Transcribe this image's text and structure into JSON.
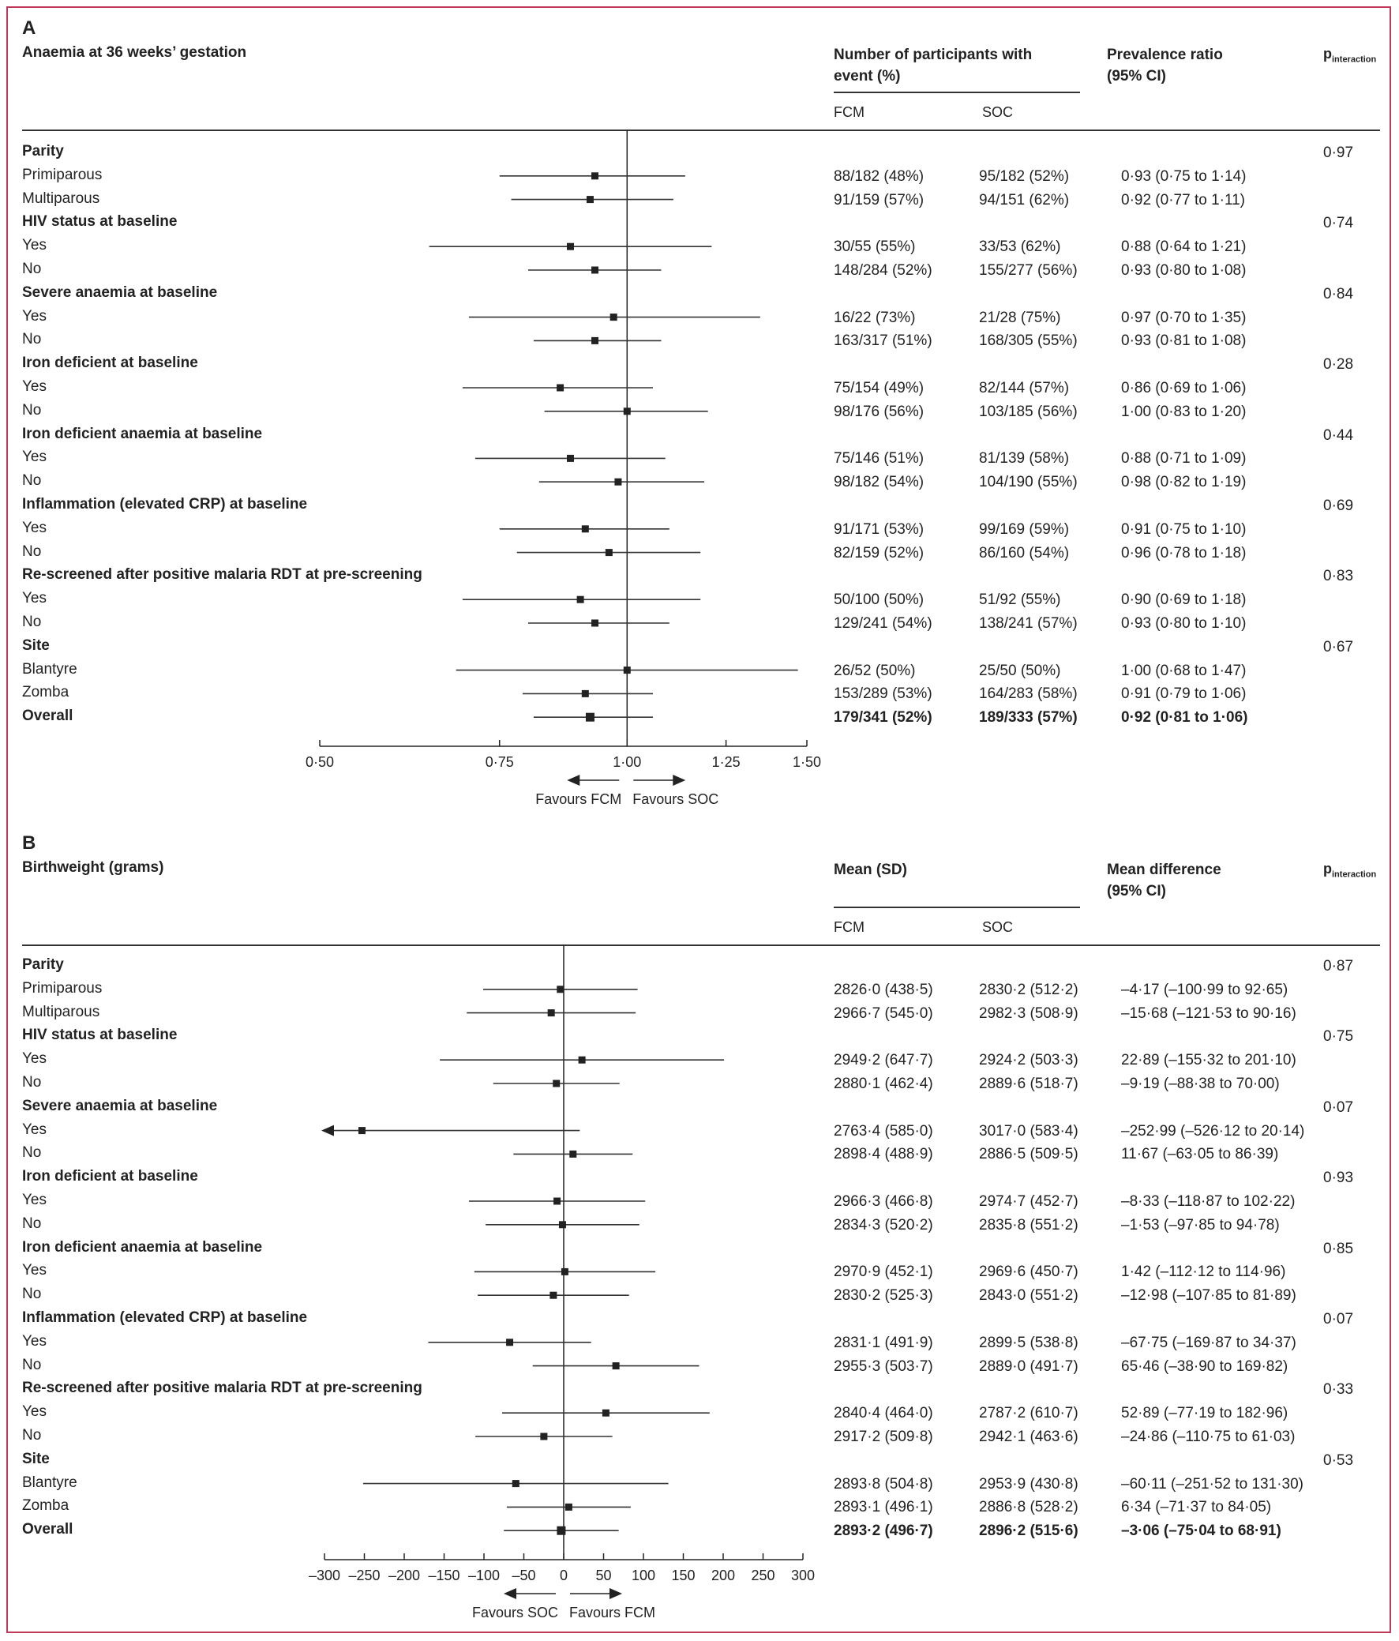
{
  "chart_data": [
    {
      "type": "forest",
      "label": "A",
      "title": "Anaemia at 36 weeks’ gestation",
      "columns": {
        "events": "Number of participants with event (%)",
        "ratio": "Prevalence ratio (95% CI)",
        "fcm": "FCM",
        "soc": "SOC",
        "pint_main": "p",
        "pint_sub": "interaction"
      },
      "axis": {
        "scale": "log",
        "xlim": [
          0.5,
          1.5
        ],
        "ref": 1.0,
        "ticks": [
          0.5,
          0.75,
          1.0,
          1.25,
          1.5
        ],
        "tick_labels": [
          "0·50",
          "0·75",
          "1·00",
          "1·25",
          "1·50"
        ],
        "favours_left": "Favours FCM",
        "favours_right": "Favours SOC"
      },
      "rows": [
        {
          "label": "Parity",
          "group": true,
          "p": "0·97"
        },
        {
          "label": "Primiparous",
          "est": 0.93,
          "lo": 0.75,
          "hi": 1.14,
          "fcm": "88/182 (48%)",
          "soc": "95/182 (52%)",
          "ci": "0·93 (0·75 to 1·14)"
        },
        {
          "label": "Multiparous",
          "est": 0.92,
          "lo": 0.77,
          "hi": 1.11,
          "fcm": "91/159 (57%)",
          "soc": "94/151 (62%)",
          "ci": "0·92 (0·77 to 1·11)"
        },
        {
          "label": "HIV status at baseline",
          "group": true,
          "p": "0·74"
        },
        {
          "label": "Yes",
          "est": 0.88,
          "lo": 0.64,
          "hi": 1.21,
          "fcm": "30/55 (55%)",
          "soc": "33/53 (62%)",
          "ci": "0·88 (0·64 to 1·21)"
        },
        {
          "label": "No",
          "est": 0.93,
          "lo": 0.8,
          "hi": 1.08,
          "fcm": "148/284 (52%)",
          "soc": "155/277 (56%)",
          "ci": "0·93 (0·80 to 1·08)"
        },
        {
          "label": "Severe anaemia at baseline",
          "group": true,
          "p": "0·84"
        },
        {
          "label": "Yes",
          "est": 0.97,
          "lo": 0.7,
          "hi": 1.35,
          "fcm": "16/22 (73%)",
          "soc": "21/28 (75%)",
          "ci": "0·97 (0·70 to 1·35)"
        },
        {
          "label": "No",
          "est": 0.93,
          "lo": 0.81,
          "hi": 1.08,
          "fcm": "163/317 (51%)",
          "soc": "168/305 (55%)",
          "ci": "0·93 (0·81 to 1·08)"
        },
        {
          "label": "Iron deficient at baseline",
          "group": true,
          "p": "0·28"
        },
        {
          "label": "Yes",
          "est": 0.86,
          "lo": 0.69,
          "hi": 1.06,
          "fcm": "75/154 (49%)",
          "soc": "82/144 (57%)",
          "ci": "0·86 (0·69 to 1·06)"
        },
        {
          "label": "No",
          "est": 1.0,
          "lo": 0.83,
          "hi": 1.2,
          "fcm": "98/176 (56%)",
          "soc": "103/185 (56%)",
          "ci": "1·00 (0·83 to 1·20)"
        },
        {
          "label": "Iron deficient anaemia at baseline",
          "group": true,
          "p": "0·44"
        },
        {
          "label": "Yes",
          "est": 0.88,
          "lo": 0.71,
          "hi": 1.09,
          "fcm": "75/146 (51%)",
          "soc": "81/139 (58%)",
          "ci": "0·88 (0·71 to 1·09)"
        },
        {
          "label": "No",
          "est": 0.98,
          "lo": 0.82,
          "hi": 1.19,
          "fcm": "98/182 (54%)",
          "soc": "104/190 (55%)",
          "ci": "0·98 (0·82 to 1·19)"
        },
        {
          "label": "Inflammation (elevated CRP) at baseline",
          "group": true,
          "p": "0·69"
        },
        {
          "label": "Yes",
          "est": 0.91,
          "lo": 0.75,
          "hi": 1.1,
          "fcm": "91/171 (53%)",
          "soc": "99/169 (59%)",
          "ci": "0·91 (0·75 to 1·10)"
        },
        {
          "label": "No",
          "est": 0.96,
          "lo": 0.78,
          "hi": 1.18,
          "fcm": "82/159 (52%)",
          "soc": "86/160 (54%)",
          "ci": "0·96 (0·78 to 1·18)"
        },
        {
          "label": "Re-screened after positive malaria RDT at pre-screening",
          "group": true,
          "p": "0·83"
        },
        {
          "label": "Yes",
          "est": 0.9,
          "lo": 0.69,
          "hi": 1.18,
          "fcm": "50/100 (50%)",
          "soc": "51/92 (55%)",
          "ci": "0·90 (0·69 to 1·18)"
        },
        {
          "label": "No",
          "est": 0.93,
          "lo": 0.8,
          "hi": 1.1,
          "fcm": "129/241 (54%)",
          "soc": "138/241 (57%)",
          "ci": "0·93 (0·80 to 1·10)"
        },
        {
          "label": "Site",
          "group": true,
          "p": "0·67"
        },
        {
          "label": "Blantyre",
          "est": 1.0,
          "lo": 0.68,
          "hi": 1.47,
          "fcm": "26/52 (50%)",
          "soc": "25/50 (50%)",
          "ci": "1·00 (0·68 to 1·47)"
        },
        {
          "label": "Zomba",
          "est": 0.91,
          "lo": 0.79,
          "hi": 1.06,
          "fcm": "153/289 (53%)",
          "soc": "164/283 (58%)",
          "ci": "0·91 (0·79 to 1·06)"
        },
        {
          "label": "Overall",
          "overall": true,
          "est": 0.92,
          "lo": 0.81,
          "hi": 1.06,
          "fcm": "179/341 (52%)",
          "soc": "189/333 (57%)",
          "ci": "0·92 (0·81 to 1·06)"
        }
      ]
    },
    {
      "type": "forest",
      "label": "B",
      "title": "Birthweight (grams)",
      "columns": {
        "events": "Mean (SD)",
        "ratio": "Mean difference (95% CI)",
        "fcm": "FCM",
        "soc": "SOC",
        "pint_main": "p",
        "pint_sub": "interaction"
      },
      "axis": {
        "scale": "linear",
        "xlim": [
          -300,
          300
        ],
        "ref": 0,
        "ticks": [
          -300,
          -250,
          -200,
          -150,
          -100,
          -50,
          0,
          50,
          100,
          150,
          200,
          250,
          300
        ],
        "tick_labels": [
          "–300",
          "–250",
          "–200",
          "–150",
          "–100",
          "–50",
          "0",
          "50",
          "100",
          "150",
          "200",
          "250",
          "300"
        ],
        "favours_left": "Favours SOC",
        "favours_right": "Favours FCM"
      },
      "rows": [
        {
          "label": "Parity",
          "group": true,
          "p": "0·87"
        },
        {
          "label": "Primiparous",
          "est": -4.17,
          "lo": -100.99,
          "hi": 92.65,
          "fcm": "2826·0 (438·5)",
          "soc": "2830·2 (512·2)",
          "ci": "–4·17 (–100·99 to 92·65)"
        },
        {
          "label": "Multiparous",
          "est": -15.68,
          "lo": -121.53,
          "hi": 90.16,
          "fcm": "2966·7 (545·0)",
          "soc": "2982·3 (508·9)",
          "ci": "–15·68 (–121·53 to 90·16)"
        },
        {
          "label": "HIV status at baseline",
          "group": true,
          "p": "0·75"
        },
        {
          "label": "Yes",
          "est": 22.89,
          "lo": -155.32,
          "hi": 201.1,
          "fcm": "2949·2 (647·7)",
          "soc": "2924·2 (503·3)",
          "ci": "22·89 (–155·32 to 201·10)"
        },
        {
          "label": "No",
          "est": -9.19,
          "lo": -88.38,
          "hi": 70.0,
          "fcm": "2880·1 (462·4)",
          "soc": "2889·6 (518·7)",
          "ci": "–9·19 (–88·38 to 70·00)"
        },
        {
          "label": "Severe anaemia at baseline",
          "group": true,
          "p": "0·07"
        },
        {
          "label": "Yes",
          "est": -252.99,
          "lo": -526.12,
          "hi": 20.14,
          "fcm": "2763·4 (585·0)",
          "soc": "3017·0 (583·4)",
          "ci": "–252·99 (–526·12 to 20·14)"
        },
        {
          "label": "No",
          "est": 11.67,
          "lo": -63.05,
          "hi": 86.39,
          "fcm": "2898·4 (488·9)",
          "soc": "2886·5 (509·5)",
          "ci": "11·67 (–63·05 to 86·39)"
        },
        {
          "label": "Iron deficient at baseline",
          "group": true,
          "p": "0·93"
        },
        {
          "label": "Yes",
          "est": -8.33,
          "lo": -118.87,
          "hi": 102.22,
          "fcm": "2966·3 (466·8)",
          "soc": "2974·7 (452·7)",
          "ci": "–8·33 (–118·87 to 102·22)"
        },
        {
          "label": "No",
          "est": -1.53,
          "lo": -97.85,
          "hi": 94.78,
          "fcm": "2834·3 (520·2)",
          "soc": "2835·8 (551·2)",
          "ci": "–1·53 (–97·85 to 94·78)"
        },
        {
          "label": "Iron deficient anaemia at baseline",
          "group": true,
          "p": "0·85"
        },
        {
          "label": "Yes",
          "est": 1.42,
          "lo": -112.12,
          "hi": 114.96,
          "fcm": "2970·9 (452·1)",
          "soc": "2969·6 (450·7)",
          "ci": "1·42 (–112·12 to 114·96)"
        },
        {
          "label": "No",
          "est": -12.98,
          "lo": -107.85,
          "hi": 81.89,
          "fcm": "2830·2 (525·3)",
          "soc": "2843·0 (551·2)",
          "ci": "–12·98 (–107·85 to 81·89)"
        },
        {
          "label": "Inflammation (elevated CRP) at baseline",
          "group": true,
          "p": "0·07"
        },
        {
          "label": "Yes",
          "est": -67.75,
          "lo": -169.87,
          "hi": 34.37,
          "fcm": "2831·1 (491·9)",
          "soc": "2899·5 (538·8)",
          "ci": "–67·75 (–169·87 to 34·37)"
        },
        {
          "label": "No",
          "est": 65.46,
          "lo": -38.9,
          "hi": 169.82,
          "fcm": "2955·3 (503·7)",
          "soc": "2889·0 (491·7)",
          "ci": "65·46 (–38·90 to 169·82)"
        },
        {
          "label": "Re-screened after positive malaria RDT at pre-screening",
          "group": true,
          "p": "0·33"
        },
        {
          "label": "Yes",
          "est": 52.89,
          "lo": -77.19,
          "hi": 182.96,
          "fcm": "2840·4 (464·0)",
          "soc": "2787·2 (610·7)",
          "ci": "52·89 (–77·19 to 182·96)"
        },
        {
          "label": "No",
          "est": -24.86,
          "lo": -110.75,
          "hi": 61.03,
          "fcm": "2917·2 (509·8)",
          "soc": "2942·1 (463·6)",
          "ci": "–24·86 (–110·75 to 61·03)"
        },
        {
          "label": "Site",
          "group": true,
          "p": "0·53"
        },
        {
          "label": "Blantyre",
          "est": -60.11,
          "lo": -251.52,
          "hi": 131.3,
          "fcm": "2893·8 (504·8)",
          "soc": "2953·9 (430·8)",
          "ci": "–60·11 (–251·52 to 131·30)"
        },
        {
          "label": "Zomba",
          "est": 6.34,
          "lo": -71.37,
          "hi": 84.05,
          "fcm": "2893·1 (496·1)",
          "soc": "2886·8 (528·2)",
          "ci": "6·34 (–71·37 to 84·05)"
        },
        {
          "label": "Overall",
          "overall": true,
          "est": -3.06,
          "lo": -75.04,
          "hi": 68.91,
          "fcm": "2893·2 (496·7)",
          "soc": "2896·2 (515·6)",
          "ci": "–3·06 (–75·04 to 68·91)"
        }
      ]
    }
  ]
}
